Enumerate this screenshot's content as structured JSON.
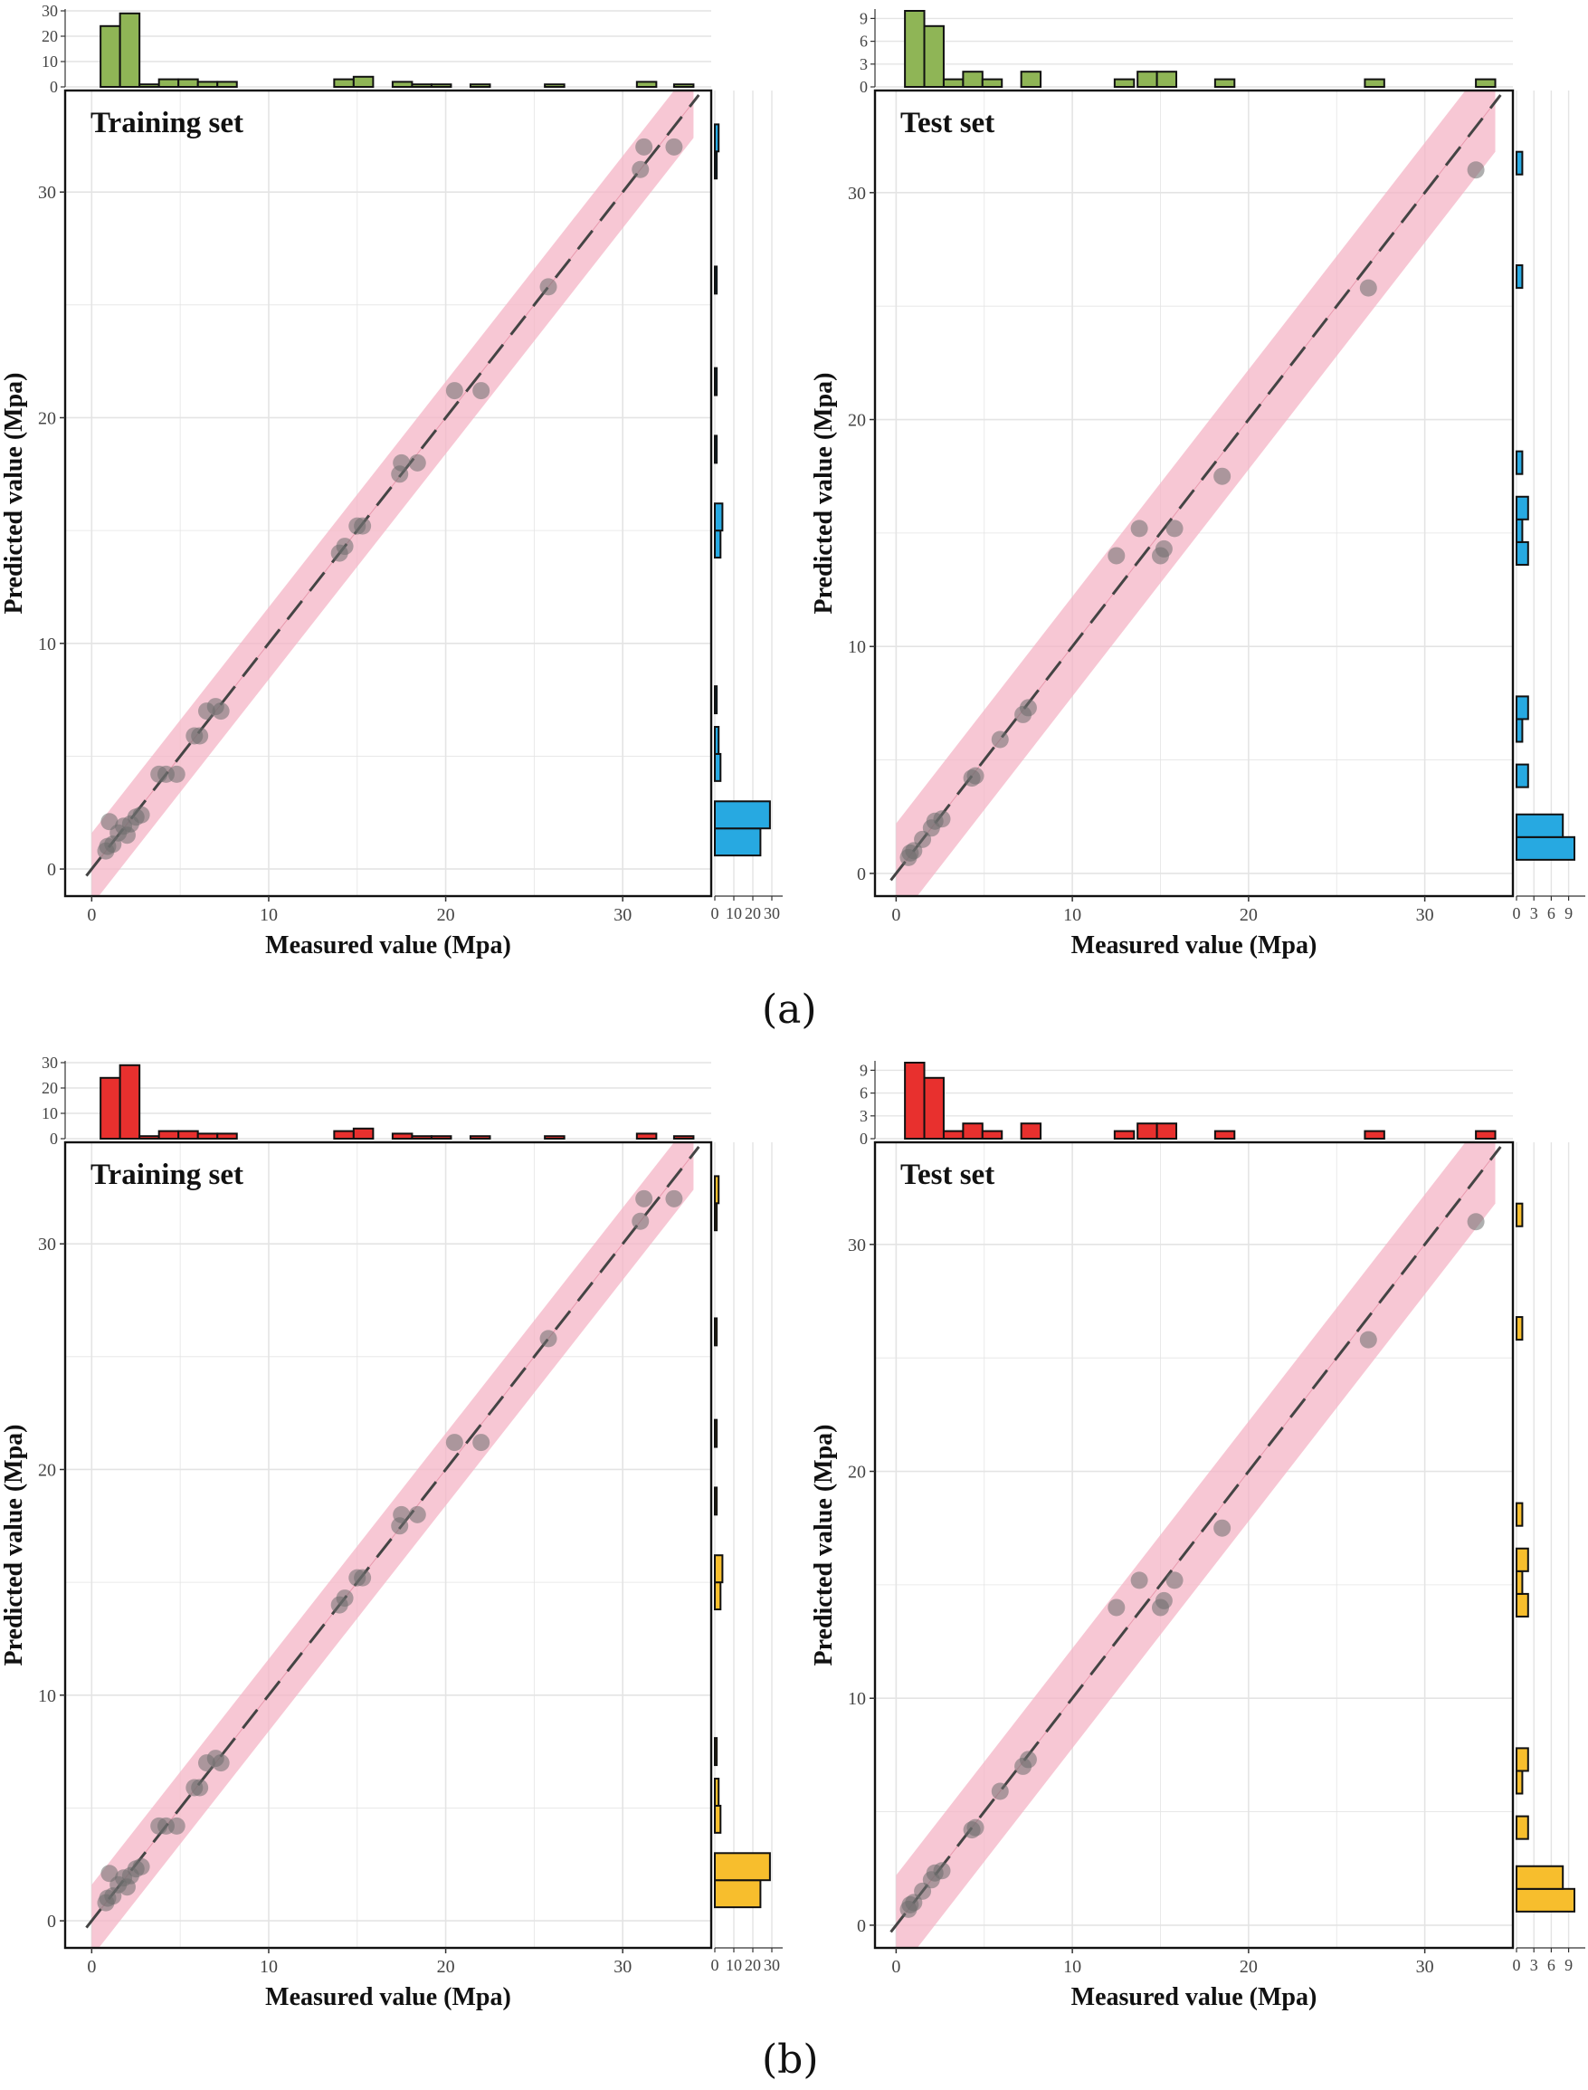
{
  "figure": {
    "caption_a": "(a)",
    "caption_b": "(b)"
  },
  "colors": {
    "band": "#f4b4c6",
    "point": "#6e6e6e",
    "grid": "#e4e4e4",
    "hist_green": "#8fb556",
    "hist_blue": "#27a9e1",
    "hist_red": "#e8302e",
    "hist_yellow": "#f7be2d"
  },
  "chart_data": [
    {
      "type": "scatter",
      "panel": "a",
      "title": "Training set",
      "xlabel": "Measured value (Mpa)",
      "ylabel": "Predicted value (Mpa)",
      "xlim": [
        -1.5,
        35
      ],
      "ylim": [
        -1.2,
        34.5
      ],
      "xticks": [
        0,
        10,
        20,
        30
      ],
      "yticks": [
        0,
        10,
        20,
        30
      ],
      "grid": true,
      "band_halfwidth": 1.6,
      "points": [
        [
          0.8,
          0.8
        ],
        [
          0.9,
          1.0
        ],
        [
          1.0,
          2.1
        ],
        [
          1.2,
          1.1
        ],
        [
          1.5,
          1.6
        ],
        [
          1.8,
          1.9
        ],
        [
          2.0,
          1.5
        ],
        [
          2.2,
          2.0
        ],
        [
          2.5,
          2.3
        ],
        [
          2.8,
          2.4
        ],
        [
          3.8,
          4.2
        ],
        [
          4.2,
          4.2
        ],
        [
          4.8,
          4.2
        ],
        [
          5.8,
          5.9
        ],
        [
          6.1,
          5.9
        ],
        [
          6.5,
          7.0
        ],
        [
          7.0,
          7.2
        ],
        [
          7.3,
          7.0
        ],
        [
          14.0,
          14.0
        ],
        [
          14.3,
          14.3
        ],
        [
          15.0,
          15.2
        ],
        [
          15.3,
          15.2
        ],
        [
          17.4,
          17.5
        ],
        [
          17.5,
          18.0
        ],
        [
          18.4,
          18.0
        ],
        [
          20.5,
          21.2
        ],
        [
          22.0,
          21.2
        ],
        [
          25.8,
          25.8
        ],
        [
          31.0,
          31.0
        ],
        [
          31.2,
          32.0
        ],
        [
          32.9,
          32.0
        ]
      ],
      "top_hist": {
        "color_key": "hist_green",
        "ticks": [
          0,
          10,
          20,
          30
        ],
        "max": 30,
        "bins": [
          [
            0.5,
            1.6,
            24
          ],
          [
            1.6,
            2.7,
            29
          ],
          [
            2.7,
            3.8,
            1
          ],
          [
            3.8,
            4.9,
            3
          ],
          [
            4.9,
            6.0,
            3
          ],
          [
            6.0,
            7.1,
            2
          ],
          [
            7.1,
            8.2,
            2
          ],
          [
            13.7,
            14.8,
            3
          ],
          [
            14.8,
            15.9,
            4
          ],
          [
            17.0,
            18.1,
            2
          ],
          [
            18.1,
            19.2,
            1
          ],
          [
            19.2,
            20.3,
            1
          ],
          [
            21.4,
            22.5,
            1
          ],
          [
            25.6,
            26.7,
            1
          ],
          [
            30.8,
            31.9,
            2
          ],
          [
            32.9,
            34.0,
            1
          ]
        ]
      },
      "right_hist": {
        "color_key": "hist_blue",
        "ticks": [
          0,
          10,
          20,
          30
        ],
        "max": 30,
        "bins": [
          [
            0.6,
            1.8,
            24
          ],
          [
            1.8,
            3.0,
            29
          ],
          [
            3.9,
            5.1,
            3
          ],
          [
            5.1,
            6.3,
            2
          ],
          [
            6.9,
            8.1,
            1
          ],
          [
            13.8,
            15.0,
            3
          ],
          [
            15.0,
            16.2,
            4
          ],
          [
            18.0,
            19.2,
            1
          ],
          [
            21.0,
            22.2,
            1
          ],
          [
            25.5,
            26.7,
            1
          ],
          [
            30.6,
            31.8,
            1
          ],
          [
            31.8,
            33.0,
            2
          ]
        ]
      }
    },
    {
      "type": "scatter",
      "panel": "a",
      "title": "Test set",
      "xlabel": "Measured value (Mpa)",
      "ylabel": "Predicted value (Mpa)",
      "xlim": [
        -1.2,
        35
      ],
      "ylim": [
        -1.0,
        34.5
      ],
      "xticks": [
        0,
        10,
        20,
        30
      ],
      "yticks": [
        0,
        10,
        20,
        30
      ],
      "grid": true,
      "band_halfwidth": 2.2,
      "points": [
        [
          0.7,
          0.7
        ],
        [
          0.8,
          0.9
        ],
        [
          1.0,
          1.0
        ],
        [
          1.5,
          1.5
        ],
        [
          2.0,
          2.0
        ],
        [
          2.2,
          2.3
        ],
        [
          2.6,
          2.4
        ],
        [
          4.3,
          4.2
        ],
        [
          4.5,
          4.3
        ],
        [
          5.9,
          5.9
        ],
        [
          7.2,
          7.0
        ],
        [
          7.5,
          7.3
        ],
        [
          12.5,
          14.0
        ],
        [
          13.8,
          15.2
        ],
        [
          15.0,
          14.0
        ],
        [
          15.2,
          14.3
        ],
        [
          15.8,
          15.2
        ],
        [
          18.5,
          17.5
        ],
        [
          26.8,
          25.8
        ],
        [
          32.9,
          31.0
        ]
      ],
      "top_hist": {
        "color_key": "hist_green",
        "ticks": [
          0,
          3,
          6,
          9
        ],
        "max": 10,
        "bins": [
          [
            0.5,
            1.6,
            10
          ],
          [
            1.6,
            2.7,
            8
          ],
          [
            2.7,
            3.8,
            1
          ],
          [
            3.8,
            4.9,
            2
          ],
          [
            4.9,
            6.0,
            1
          ],
          [
            7.1,
            8.2,
            2
          ],
          [
            12.4,
            13.5,
            1
          ],
          [
            13.7,
            14.8,
            2
          ],
          [
            14.8,
            15.9,
            2
          ],
          [
            18.1,
            19.2,
            1
          ],
          [
            26.6,
            27.7,
            1
          ],
          [
            32.9,
            34.0,
            1
          ]
        ]
      },
      "right_hist": {
        "color_key": "hist_blue",
        "ticks": [
          0,
          3,
          6,
          9
        ],
        "max": 10,
        "bins": [
          [
            0.6,
            1.6,
            10
          ],
          [
            1.6,
            2.6,
            8
          ],
          [
            3.8,
            4.8,
            2
          ],
          [
            5.8,
            6.8,
            1
          ],
          [
            6.8,
            7.8,
            2
          ],
          [
            13.6,
            14.6,
            2
          ],
          [
            14.6,
            15.6,
            1
          ],
          [
            15.6,
            16.6,
            2
          ],
          [
            17.6,
            18.6,
            1
          ],
          [
            25.8,
            26.8,
            1
          ],
          [
            30.8,
            31.8,
            1
          ]
        ]
      }
    },
    {
      "type": "scatter",
      "panel": "b",
      "title": "Training set",
      "xlabel": "Measured value (Mpa)",
      "ylabel": "Predicted value (Mpa)",
      "xlim": [
        -1.5,
        35
      ],
      "ylim": [
        -1.2,
        34.5
      ],
      "xticks": [
        0,
        10,
        20,
        30
      ],
      "yticks": [
        0,
        10,
        20,
        30
      ],
      "grid": true,
      "band_halfwidth": 1.6,
      "points": [
        [
          0.8,
          0.8
        ],
        [
          0.9,
          1.0
        ],
        [
          1.0,
          2.1
        ],
        [
          1.2,
          1.1
        ],
        [
          1.5,
          1.6
        ],
        [
          1.8,
          1.9
        ],
        [
          2.0,
          1.5
        ],
        [
          2.2,
          2.0
        ],
        [
          2.5,
          2.3
        ],
        [
          2.8,
          2.4
        ],
        [
          3.8,
          4.2
        ],
        [
          4.2,
          4.2
        ],
        [
          4.8,
          4.2
        ],
        [
          5.8,
          5.9
        ],
        [
          6.1,
          5.9
        ],
        [
          6.5,
          7.0
        ],
        [
          7.0,
          7.2
        ],
        [
          7.3,
          7.0
        ],
        [
          14.0,
          14.0
        ],
        [
          14.3,
          14.3
        ],
        [
          15.0,
          15.2
        ],
        [
          15.3,
          15.2
        ],
        [
          17.4,
          17.5
        ],
        [
          17.5,
          18.0
        ],
        [
          18.4,
          18.0
        ],
        [
          20.5,
          21.2
        ],
        [
          22.0,
          21.2
        ],
        [
          25.8,
          25.8
        ],
        [
          31.0,
          31.0
        ],
        [
          31.2,
          32.0
        ],
        [
          32.9,
          32.0
        ]
      ],
      "top_hist": {
        "color_key": "hist_red",
        "ticks": [
          0,
          10,
          20,
          30
        ],
        "max": 30,
        "bins": [
          [
            0.5,
            1.6,
            24
          ],
          [
            1.6,
            2.7,
            29
          ],
          [
            2.7,
            3.8,
            1
          ],
          [
            3.8,
            4.9,
            3
          ],
          [
            4.9,
            6.0,
            3
          ],
          [
            6.0,
            7.1,
            2
          ],
          [
            7.1,
            8.2,
            2
          ],
          [
            13.7,
            14.8,
            3
          ],
          [
            14.8,
            15.9,
            4
          ],
          [
            17.0,
            18.1,
            2
          ],
          [
            18.1,
            19.2,
            1
          ],
          [
            19.2,
            20.3,
            1
          ],
          [
            21.4,
            22.5,
            1
          ],
          [
            25.6,
            26.7,
            1
          ],
          [
            30.8,
            31.9,
            2
          ],
          [
            32.9,
            34.0,
            1
          ]
        ]
      },
      "right_hist": {
        "color_key": "hist_yellow",
        "ticks": [
          0,
          10,
          20,
          30
        ],
        "max": 30,
        "bins": [
          [
            0.6,
            1.8,
            24
          ],
          [
            1.8,
            3.0,
            29
          ],
          [
            3.9,
            5.1,
            3
          ],
          [
            5.1,
            6.3,
            2
          ],
          [
            6.9,
            8.1,
            1
          ],
          [
            13.8,
            15.0,
            3
          ],
          [
            15.0,
            16.2,
            4
          ],
          [
            18.0,
            19.2,
            1
          ],
          [
            21.0,
            22.2,
            1
          ],
          [
            25.5,
            26.7,
            1
          ],
          [
            30.6,
            31.8,
            1
          ],
          [
            31.8,
            33.0,
            2
          ]
        ]
      }
    },
    {
      "type": "scatter",
      "panel": "b",
      "title": "Test set",
      "xlabel": "Measured value (Mpa)",
      "ylabel": "Predicted value (Mpa)",
      "xlim": [
        -1.2,
        35
      ],
      "ylim": [
        -1.0,
        34.5
      ],
      "xticks": [
        0,
        10,
        20,
        30
      ],
      "yticks": [
        0,
        10,
        20,
        30
      ],
      "grid": true,
      "band_halfwidth": 2.2,
      "points": [
        [
          0.7,
          0.7
        ],
        [
          0.8,
          0.9
        ],
        [
          1.0,
          1.0
        ],
        [
          1.5,
          1.5
        ],
        [
          2.0,
          2.0
        ],
        [
          2.2,
          2.3
        ],
        [
          2.6,
          2.4
        ],
        [
          4.3,
          4.2
        ],
        [
          4.5,
          4.3
        ],
        [
          5.9,
          5.9
        ],
        [
          7.2,
          7.0
        ],
        [
          7.5,
          7.3
        ],
        [
          12.5,
          14.0
        ],
        [
          13.8,
          15.2
        ],
        [
          15.0,
          14.0
        ],
        [
          15.2,
          14.3
        ],
        [
          15.8,
          15.2
        ],
        [
          18.5,
          17.5
        ],
        [
          26.8,
          25.8
        ],
        [
          32.9,
          31.0
        ]
      ],
      "top_hist": {
        "color_key": "hist_red",
        "ticks": [
          0,
          3,
          6,
          9
        ],
        "max": 10,
        "bins": [
          [
            0.5,
            1.6,
            10
          ],
          [
            1.6,
            2.7,
            8
          ],
          [
            2.7,
            3.8,
            1
          ],
          [
            3.8,
            4.9,
            2
          ],
          [
            4.9,
            6.0,
            1
          ],
          [
            7.1,
            8.2,
            2
          ],
          [
            12.4,
            13.5,
            1
          ],
          [
            13.7,
            14.8,
            2
          ],
          [
            14.8,
            15.9,
            2
          ],
          [
            18.1,
            19.2,
            1
          ],
          [
            26.6,
            27.7,
            1
          ],
          [
            32.9,
            34.0,
            1
          ]
        ]
      },
      "right_hist": {
        "color_key": "hist_yellow",
        "ticks": [
          0,
          3,
          6,
          9
        ],
        "max": 10,
        "bins": [
          [
            0.6,
            1.6,
            10
          ],
          [
            1.6,
            2.6,
            8
          ],
          [
            3.8,
            4.8,
            2
          ],
          [
            5.8,
            6.8,
            1
          ],
          [
            6.8,
            7.8,
            2
          ],
          [
            13.6,
            14.6,
            2
          ],
          [
            14.6,
            15.6,
            1
          ],
          [
            15.6,
            16.6,
            2
          ],
          [
            17.6,
            18.6,
            1
          ],
          [
            25.8,
            26.8,
            1
          ],
          [
            30.8,
            31.8,
            1
          ]
        ]
      }
    }
  ]
}
